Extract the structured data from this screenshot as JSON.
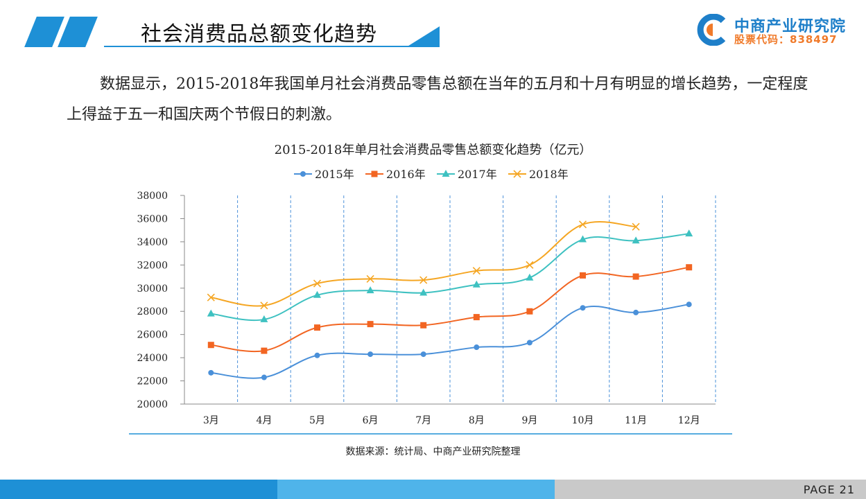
{
  "header": {
    "title": "社会消费品总额变化趋势",
    "logo_name": "中商产业研究院",
    "logo_code": "股票代码：838497"
  },
  "paragraph": "数据显示，2015-2018年我国单月社会消费品零售总额在当年的五月和十月有明显的增长趋势，一定程度上得益于五一和国庆两个节假日的刺激。",
  "source": "数据来源：统计局、中商产业研究院整理",
  "footer": {
    "page": "PAGE  21"
  },
  "colors": {
    "accent": "#1e90d6",
    "accent_light": "#4fb4ea",
    "footer_gray": "#c9c9c9",
    "logo_orange": "#f07a2a"
  },
  "chart_data": {
    "type": "line",
    "title": "2015-2018年单月社会消费品零售总额变化趋势（亿元）",
    "categories": [
      "3月",
      "4月",
      "5月",
      "6月",
      "7月",
      "8月",
      "9月",
      "10月",
      "11月",
      "12月"
    ],
    "ylim": [
      20000,
      38000
    ],
    "yticks": [
      "20000",
      "22000",
      "24000",
      "26000",
      "28000",
      "30000",
      "32000",
      "34000",
      "36000",
      "38000"
    ],
    "legend_position": "top",
    "grid": "vertical dashed",
    "series": [
      {
        "name": "2015年",
        "color": "#4a90d9",
        "marker": "circle",
        "values": [
          22700,
          22300,
          24200,
          24300,
          24300,
          24900,
          25300,
          28300,
          27900,
          28600
        ]
      },
      {
        "name": "2016年",
        "color": "#f26522",
        "marker": "square",
        "values": [
          25100,
          24600,
          26600,
          26900,
          26800,
          27500,
          28000,
          31100,
          31000,
          31800
        ]
      },
      {
        "name": "2017年",
        "color": "#3ec1c1",
        "marker": "triangle",
        "values": [
          27800,
          27300,
          29400,
          29800,
          29600,
          30300,
          30900,
          34200,
          34100,
          34700
        ]
      },
      {
        "name": "2018年",
        "color": "#f5a623",
        "marker": "x",
        "values": [
          29200,
          28500,
          30400,
          30800,
          30700,
          31500,
          32000,
          35500,
          35300,
          null
        ]
      }
    ]
  }
}
